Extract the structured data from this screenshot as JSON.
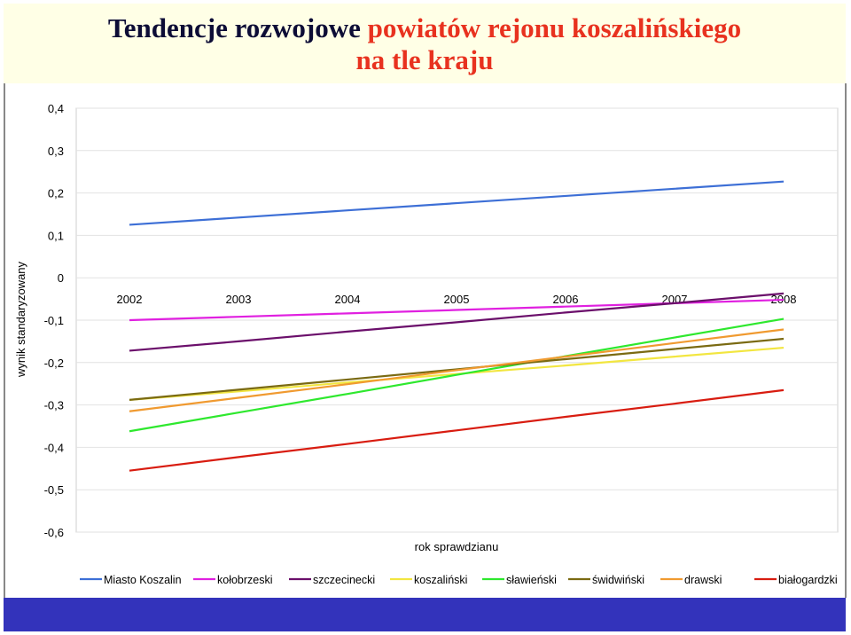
{
  "title": {
    "part1": "Tendencje rozwojowe",
    "part2": "powiatów rejonu koszalińskiego",
    "part3": "na tle kraju"
  },
  "colors": {
    "title_dark": "#0d0d36",
    "title_red": "#e8321f",
    "bottom_bar": "#3333bb"
  },
  "chart_data": {
    "type": "line",
    "xlabel": "rok sprawdzianu",
    "ylabel": "wynik standaryzowany",
    "categories": [
      "2002",
      "2003",
      "2004",
      "2005",
      "2006",
      "2007",
      "2008"
    ],
    "ylim": [
      -0.6,
      0.4
    ],
    "yticks": [
      "0,4",
      "0,3",
      "0,2",
      "0,1",
      "0",
      "-0,1",
      "-0,2",
      "-0,3",
      "-0,4",
      "-0,5",
      "-0,6"
    ],
    "grid": true,
    "legend_position": "bottom",
    "series": [
      {
        "name": "Miasto Koszalin",
        "color": "#3d6fd6",
        "values": [
          0.125,
          0.142,
          0.159,
          0.176,
          0.193,
          0.21,
          0.227
        ]
      },
      {
        "name": "kołobrzeski",
        "color": "#e020e0",
        "values": [
          -0.1,
          -0.092,
          -0.084,
          -0.076,
          -0.068,
          -0.06,
          -0.052
        ]
      },
      {
        "name": "szczecinecki",
        "color": "#6b0f6b",
        "values": [
          -0.172,
          -0.15,
          -0.127,
          -0.105,
          -0.082,
          -0.06,
          -0.037
        ]
      },
      {
        "name": "koszaliński",
        "color": "#f2e640",
        "values": [
          -0.288,
          -0.268,
          -0.247,
          -0.227,
          -0.207,
          -0.186,
          -0.165
        ]
      },
      {
        "name": "sławieński",
        "color": "#2ee82e",
        "values": [
          -0.362,
          -0.318,
          -0.274,
          -0.229,
          -0.185,
          -0.141,
          -0.097
        ]
      },
      {
        "name": "świdwiński",
        "color": "#7a6a12",
        "values": [
          -0.288,
          -0.264,
          -0.24,
          -0.216,
          -0.192,
          -0.168,
          -0.144
        ]
      },
      {
        "name": "drawski",
        "color": "#f09a30",
        "values": [
          -0.315,
          -0.283,
          -0.251,
          -0.218,
          -0.186,
          -0.154,
          -0.122
        ]
      },
      {
        "name": "białogardzki",
        "color": "#d81c10",
        "values": [
          -0.455,
          -0.423,
          -0.392,
          -0.36,
          -0.328,
          -0.297,
          -0.265
        ]
      }
    ]
  }
}
